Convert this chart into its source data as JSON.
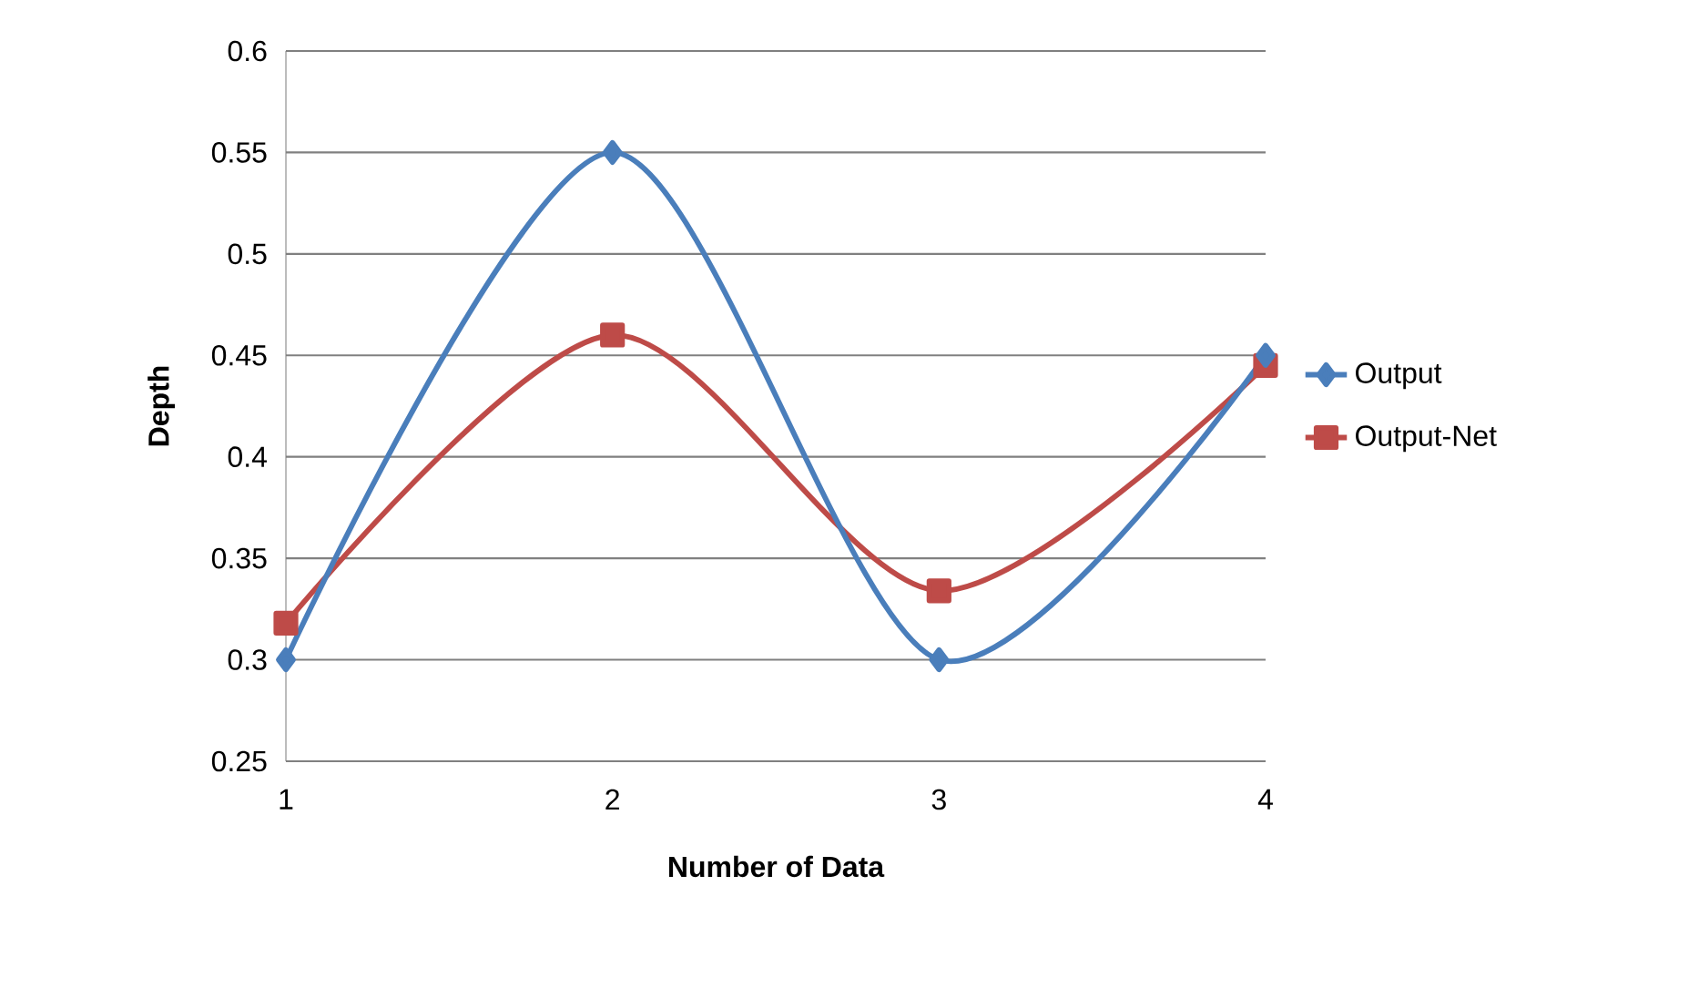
{
  "chart_data": {
    "type": "line",
    "xlabel": "Number of Data",
    "ylabel": "Depth",
    "x": [
      1,
      2,
      3,
      4
    ],
    "xlim": [
      1,
      4
    ],
    "xticks": [
      1,
      2,
      3,
      4
    ],
    "ylim": [
      0.25,
      0.6
    ],
    "yticks": [
      0.25,
      0.3,
      0.35,
      0.4,
      0.45,
      0.5,
      0.55,
      0.6
    ],
    "grid": "y",
    "legend": "right",
    "series": [
      {
        "name": "Output",
        "color": "#4a7ebb",
        "marker": "diamond",
        "values": [
          0.3,
          0.55,
          0.3,
          0.45
        ]
      },
      {
        "name": "Output-Net",
        "color": "#be4b48",
        "marker": "square",
        "values": [
          0.318,
          0.46,
          0.334,
          0.445
        ]
      }
    ]
  }
}
